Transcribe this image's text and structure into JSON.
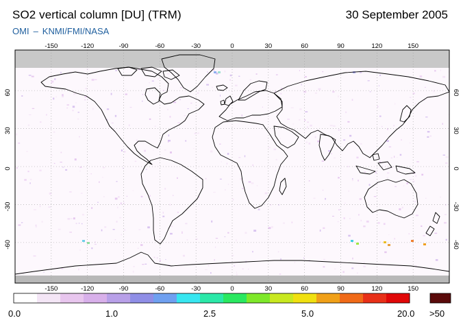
{
  "header": {
    "title": "SO2 vertical column [DU] (TRM)",
    "date": "30 September 2005",
    "source_org": "OMI",
    "source_sep": "–",
    "source_agencies": "KNMI/FMI/NASA"
  },
  "map": {
    "projection": "equirectangular",
    "lon_ticks_top": [
      "-150",
      "-120",
      "-90",
      "-60",
      "-30",
      "0",
      "30",
      "60",
      "90",
      "120",
      "150"
    ],
    "lon_ticks_bottom": [
      "-150",
      "-120",
      "-90",
      "-60",
      "-30",
      "0",
      "30",
      "60",
      "90",
      "120",
      "150"
    ],
    "lat_ticks_left": [
      "60",
      "30",
      "0",
      "-30",
      "-60"
    ],
    "lat_ticks_right": [
      "60",
      "30",
      "0",
      "-30",
      "-60"
    ],
    "lon_tick_values": [
      -150,
      -120,
      -90,
      -60,
      -30,
      0,
      30,
      60,
      90,
      120,
      150
    ],
    "lat_tick_values": [
      60,
      30,
      0,
      -30,
      -60
    ],
    "no_data_color": "#c8c8c8",
    "coast_color": "#000000",
    "background_color": "#fdf8fd"
  },
  "colorbar": {
    "labels": [
      "0.0",
      "1.0",
      "2.5",
      "5.0",
      "20.0"
    ],
    "overflow_label": ">50",
    "colors": [
      "#ffffff",
      "#f4e6f6",
      "#e8c6ee",
      "#d8b0ea",
      "#b8a0e8",
      "#8f8ee6",
      "#6fa0f0",
      "#37e6f0",
      "#2be8a8",
      "#2ae860",
      "#7ee82a",
      "#c8e820",
      "#f0e010",
      "#f0a018",
      "#f06a18",
      "#e83018",
      "#e00808"
    ],
    "overflow_color": "#5a0a0a"
  }
}
